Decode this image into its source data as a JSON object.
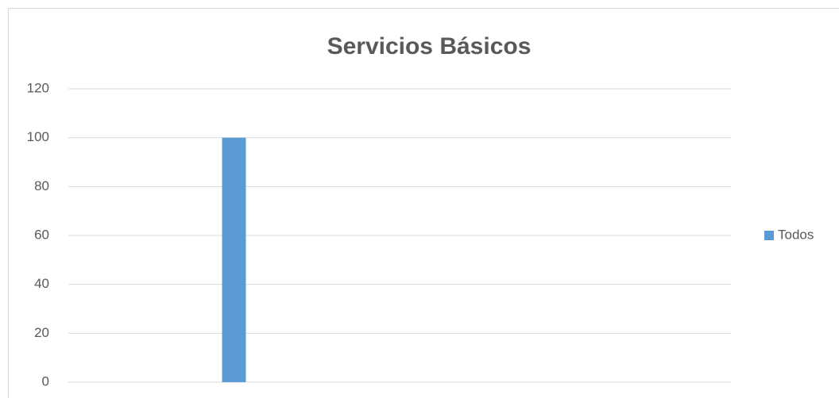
{
  "chart_data": {
    "type": "bar",
    "title": "Servicios Básicos",
    "categories": [
      null,
      null
    ],
    "series": [
      {
        "name": "Todos",
        "color": "#5b9bd5",
        "values": [
          100,
          null
        ]
      }
    ],
    "ylim": [
      0,
      120
    ],
    "yticks": [
      0,
      20,
      40,
      60,
      80,
      100,
      120
    ],
    "grid": true,
    "legend": "right"
  }
}
